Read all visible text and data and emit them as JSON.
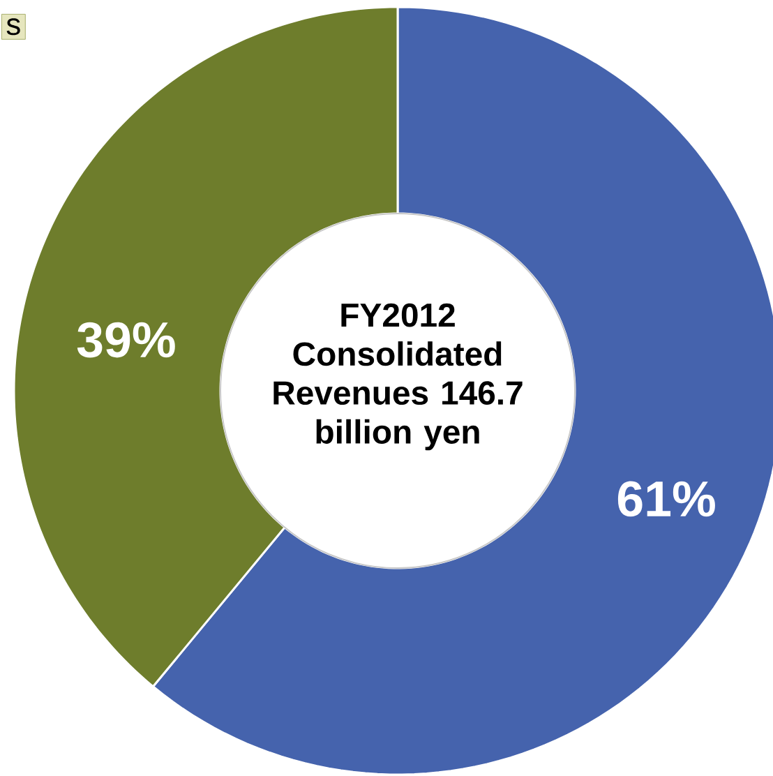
{
  "chart_data": {
    "type": "donut",
    "title": "FY2012 Consolidated Revenues 146.7 billion yen",
    "categories": [
      null,
      null
    ],
    "values": [
      61,
      39
    ],
    "colors": [
      "#4563ad",
      "#6e7d2c"
    ],
    "value_labels": [
      "61%",
      "39%"
    ],
    "annotations": [
      "s"
    ]
  }
}
